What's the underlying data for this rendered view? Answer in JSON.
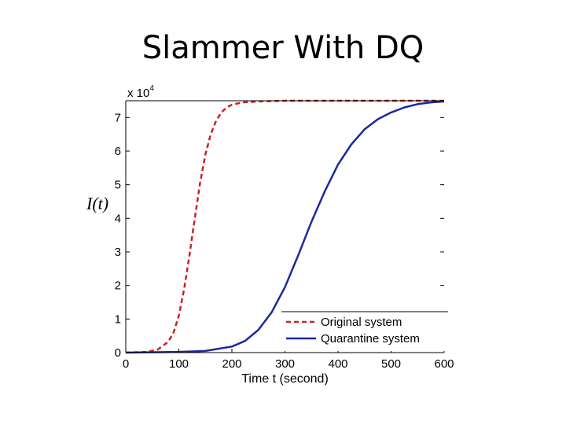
{
  "slide": {
    "title": "Slammer With DQ"
  },
  "chart_data": {
    "type": "line",
    "title": "",
    "xlabel": "Time t (second)",
    "ylabel": "I(t)",
    "y_multiplier_label": "x 10",
    "y_multiplier_exponent": "4",
    "xlim": [
      0,
      600
    ],
    "ylim": [
      0,
      7.5
    ],
    "x_ticks": [
      0,
      100,
      200,
      300,
      400,
      500,
      600
    ],
    "y_ticks": [
      0,
      1,
      2,
      3,
      4,
      5,
      6,
      7
    ],
    "grid": false,
    "legend_position": "bottom-right",
    "series": [
      {
        "name": "Original system",
        "color": "#cc2222",
        "style": "dashed",
        "x": [
          0,
          40,
          60,
          80,
          90,
          100,
          110,
          120,
          130,
          140,
          150,
          160,
          170,
          180,
          190,
          200,
          220,
          250,
          300,
          400,
          500,
          600
        ],
        "values": [
          0.0,
          0.02,
          0.09,
          0.32,
          0.6,
          1.1,
          1.9,
          2.9,
          4.0,
          5.05,
          5.9,
          6.5,
          6.9,
          7.15,
          7.3,
          7.38,
          7.45,
          7.48,
          7.5,
          7.5,
          7.5,
          7.5
        ]
      },
      {
        "name": "Quarantine system",
        "color": "#1a2a9a",
        "style": "solid",
        "x": [
          0,
          100,
          150,
          200,
          225,
          250,
          275,
          300,
          325,
          350,
          375,
          400,
          425,
          450,
          475,
          500,
          525,
          550,
          575,
          600
        ],
        "values": [
          0.0,
          0.02,
          0.05,
          0.18,
          0.35,
          0.68,
          1.2,
          1.95,
          2.9,
          3.9,
          4.8,
          5.6,
          6.2,
          6.65,
          6.95,
          7.15,
          7.3,
          7.4,
          7.45,
          7.48
        ]
      }
    ]
  }
}
